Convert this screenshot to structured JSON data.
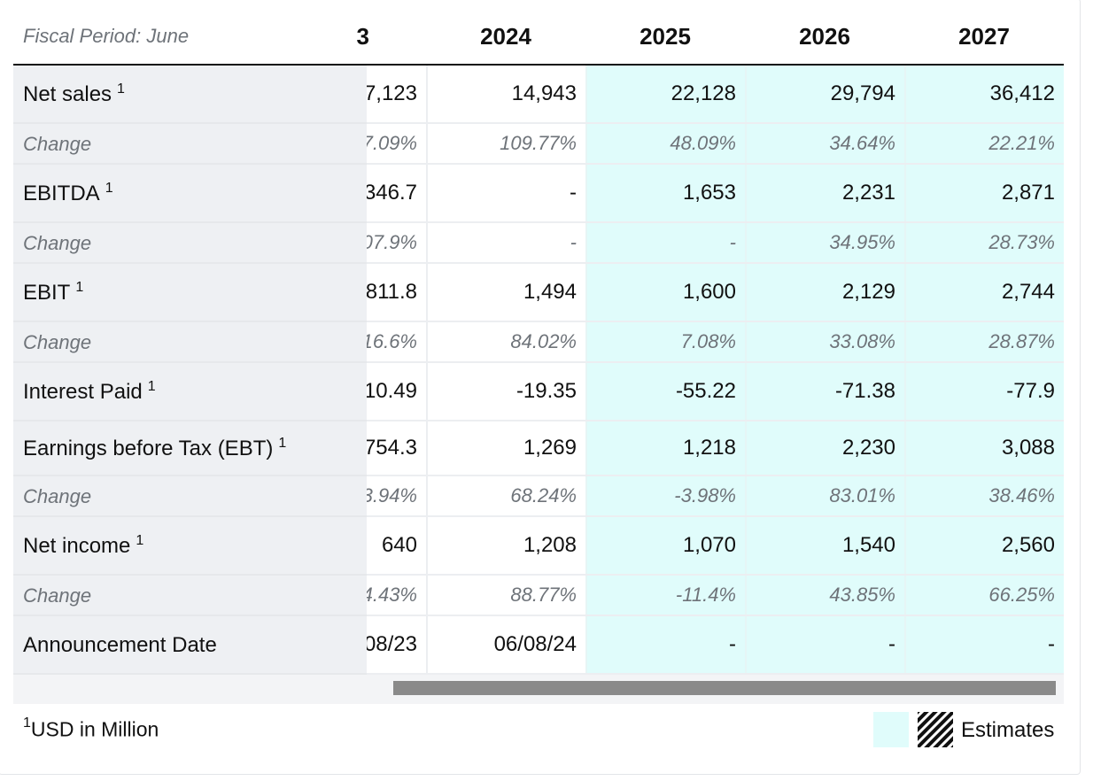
{
  "header": {
    "fiscal_period": "Fiscal Period: June",
    "years": [
      "3",
      "2024",
      "2025",
      "2026",
      "2027"
    ]
  },
  "rows": [
    {
      "label": "Net sales",
      "sup": "1",
      "type": "main",
      "values": [
        "7,123",
        "14,943",
        "22,128",
        "29,794",
        "36,412"
      ]
    },
    {
      "label": "Change",
      "sup": "",
      "type": "change",
      "values": [
        "7.09%",
        "109.77%",
        "48.09%",
        "34.64%",
        "22.21%"
      ]
    },
    {
      "label": "EBITDA",
      "sup": "1",
      "type": "main",
      "values": [
        "346.7",
        "-",
        "1,653",
        "2,231",
        "2,871"
      ]
    },
    {
      "label": "Change",
      "sup": "",
      "type": "change",
      "values": [
        "07.9%",
        "-",
        "-",
        "34.95%",
        "28.73%"
      ]
    },
    {
      "label": "EBIT",
      "sup": "1",
      "type": "main",
      "values": [
        "811.8",
        "1,494",
        "1,600",
        "2,129",
        "2,744"
      ]
    },
    {
      "label": "Change",
      "sup": "",
      "type": "change",
      "values": [
        "16.6%",
        "84.02%",
        "7.08%",
        "33.08%",
        "28.87%"
      ]
    },
    {
      "label": "Interest Paid",
      "sup": "1",
      "type": "main",
      "values": [
        "10.49",
        "-19.35",
        "-55.22",
        "-71.38",
        "-77.9"
      ]
    },
    {
      "label": "Earnings before Tax (EBT)",
      "sup": "1",
      "type": "main",
      "values": [
        "754.3",
        "1,269",
        "1,218",
        "2,230",
        "3,088"
      ]
    },
    {
      "label": "Change",
      "sup": "",
      "type": "change",
      "values": [
        "3.94%",
        "68.24%",
        "-3.98%",
        "83.01%",
        "38.46%"
      ]
    },
    {
      "label": "Net income",
      "sup": "1",
      "type": "main",
      "values": [
        "640",
        "1,208",
        "1,070",
        "1,540",
        "2,560"
      ]
    },
    {
      "label": "Change",
      "sup": "",
      "type": "change",
      "values": [
        "4.43%",
        "88.77%",
        "-11.4%",
        "43.85%",
        "66.25%"
      ]
    },
    {
      "label": "Announcement Date",
      "sup": "",
      "type": "main",
      "values": [
        "08/23",
        "06/08/24",
        "-",
        "-",
        "-"
      ]
    }
  ],
  "footnote": {
    "sup": "1",
    "text": "USD in Million"
  },
  "legend": {
    "label": "Estimates",
    "estimate_color": "#e0fcfb"
  }
}
